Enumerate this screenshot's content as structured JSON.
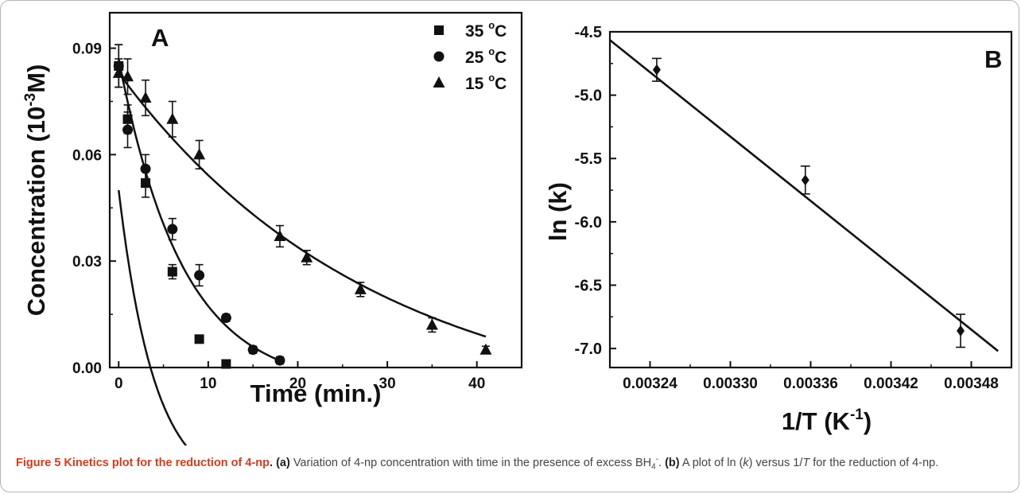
{
  "chart_data": [
    {
      "panel": "A",
      "type": "scatter",
      "xlabel": "Time (min.)",
      "ylabel_main": "Concentration (10",
      "ylabel_sup": "-3",
      "ylabel_end": "M)",
      "xlim": [
        -1,
        45
      ],
      "ylim": [
        0,
        0.1
      ],
      "xticks": [
        "0",
        "10",
        "20",
        "30",
        "40"
      ],
      "yticks": [
        "0.00",
        "0.03",
        "0.06",
        "0.09"
      ],
      "legend_position": "top-right",
      "series": [
        {
          "name": "35 °C",
          "label_main": "35 ",
          "label_sup": "o",
          "label_end": "C",
          "marker": "square",
          "x": [
            0,
            1,
            3,
            6,
            9,
            12
          ],
          "y": [
            0.085,
            0.07,
            0.052,
            0.027,
            0.008,
            0.001
          ],
          "err": [
            0.006,
            0.004,
            0.004,
            0.002,
            0.001,
            0.001
          ],
          "fit": {
            "c0": 0.085,
            "k": 0.25,
            "offset": -0.035,
            "xmax": 12.5
          }
        },
        {
          "name": "25 °C",
          "label_main": "25 ",
          "label_sup": "o",
          "label_end": "C",
          "marker": "circle",
          "x": [
            0,
            1,
            3,
            6,
            9,
            12,
            15,
            18
          ],
          "y": [
            0.085,
            0.067,
            0.056,
            0.039,
            0.026,
            0.014,
            0.005,
            0.002
          ],
          "err": [
            0.006,
            0.005,
            0.004,
            0.003,
            0.003,
            0.001,
            0.001,
            0.001
          ],
          "fit": {
            "c0": 0.0925,
            "k": 0.14,
            "offset": -0.0055,
            "xmax": 18
          }
        },
        {
          "name": "15 °C",
          "label_main": "15 ",
          "label_sup": "o",
          "label_end": "C",
          "marker": "triangle",
          "x": [
            0,
            1,
            3,
            6,
            9,
            18,
            21,
            27,
            35,
            41
          ],
          "y": [
            0.083,
            0.082,
            0.076,
            0.07,
            0.06,
            0.037,
            0.031,
            0.022,
            0.012,
            0.005
          ],
          "err": [
            0.004,
            0.005,
            0.005,
            0.005,
            0.004,
            0.003,
            0.002,
            0.002,
            0.002,
            0.001
          ],
          "fit": {
            "c0": 0.0975,
            "k": 0.035,
            "offset": -0.0145,
            "xmax": 41
          }
        }
      ]
    },
    {
      "panel": "B",
      "type": "scatter",
      "xlabel_main": "1/T (K",
      "xlabel_sup": "-1",
      "xlabel_end": ")",
      "ylabel": "ln (k)",
      "xlim": [
        0.00321,
        0.00351
      ],
      "ylim": [
        -7.15,
        -4.5
      ],
      "xticks": [
        "0.00324",
        "0.00330",
        "0.00336",
        "0.00342",
        "0.00348"
      ],
      "yticks": [
        "-4.5",
        "-5.0",
        "-5.5",
        "-6.0",
        "-6.5",
        "-7.0"
      ],
      "series": [
        {
          "marker": "diamond",
          "x": [
            0.003245,
            0.003356,
            0.003472
          ],
          "y": [
            -4.8,
            -5.67,
            -6.86
          ],
          "err": [
            0.09,
            0.11,
            0.13
          ],
          "fit": {
            "x": [
              0.00321,
              0.0035
            ],
            "y": [
              -4.565,
              -7.02
            ]
          }
        }
      ]
    }
  ],
  "caption": {
    "title": "Figure 5 Kinetics plot for the reduction of 4-np",
    "sep": ". ",
    "a_tag": "(a)",
    "a_text": " Variation of 4-np concentration with time in the presence of excess BH",
    "a_sub": "4",
    "a_sup": "-",
    "a_end": ". ",
    "b_tag": "(b)",
    "b_text": " A plot of ln (",
    "b_k": "k",
    "b_mid": ") versus 1/",
    "b_T": "T",
    "b_end": " for the reduction of 4-np."
  }
}
